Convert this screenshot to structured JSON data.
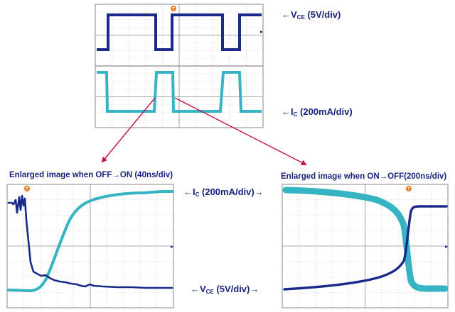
{
  "colors": {
    "vce": "#1a2a8a",
    "ic": "#36b4c4",
    "arrow": "#c0154a",
    "text": "#1a237e",
    "marker": "#e8781e"
  },
  "labels": {
    "top_vce": "←V",
    "top_vce_sub": "CE",
    "top_vce_unit": " (5V/div)",
    "top_ic": "←I",
    "top_ic_sub": "C",
    "top_ic_unit": " (200mA/div)",
    "title_left": "Enlarged image when OFF→ON (40ns/div)",
    "title_right": "Enlarged image when ON→OFF(200ns/div)",
    "mid_ic": "←I",
    "mid_ic_sub": "C",
    "mid_ic_unit": " (200mA/div)→",
    "mid_vce": "←V",
    "mid_vce_sub": "CE",
    "mid_vce_unit": " (5V/div)→",
    "marker": "T"
  },
  "chart_data": [
    {
      "type": "line",
      "title": "",
      "series": [
        {
          "name": "V_CE (5V/div)",
          "scale": "5V/div"
        },
        {
          "name": "I_C (200mA/div)",
          "scale": "200mA/div"
        }
      ],
      "note": "Overview of switching waveforms (square wave, two periods)"
    },
    {
      "type": "line",
      "title": "Enlarged image when OFF→ON (40ns/div)",
      "x_scale": "40ns/div",
      "series": [
        {
          "name": "I_C",
          "scale": "200mA/div"
        },
        {
          "name": "V_CE",
          "scale": "5V/div"
        }
      ]
    },
    {
      "type": "line",
      "title": "Enlarged image when ON→OFF(200ns/div)",
      "x_scale": "200ns/div",
      "series": [
        {
          "name": "I_C",
          "scale": "200mA/div"
        },
        {
          "name": "V_CE",
          "scale": "5V/div"
        }
      ]
    }
  ]
}
